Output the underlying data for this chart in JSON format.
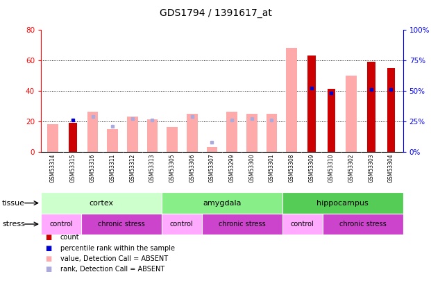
{
  "title": "GDS1794 / 1391617_at",
  "samples": [
    "GSM53314",
    "GSM53315",
    "GSM53316",
    "GSM53311",
    "GSM53312",
    "GSM53313",
    "GSM53305",
    "GSM53306",
    "GSM53307",
    "GSM53299",
    "GSM53300",
    "GSM53301",
    "GSM53308",
    "GSM53309",
    "GSM53310",
    "GSM53302",
    "GSM53303",
    "GSM53304"
  ],
  "count_values": [
    0,
    19,
    0,
    0,
    0,
    0,
    0,
    0,
    0,
    0,
    0,
    0,
    0,
    63,
    41,
    0,
    59,
    55
  ],
  "percentile_rank": [
    0,
    26,
    0,
    0,
    0,
    0,
    0,
    0,
    0,
    0,
    0,
    0,
    0,
    52,
    48,
    0,
    51,
    51
  ],
  "absent_value": [
    18,
    0,
    26,
    15,
    23,
    21,
    16,
    25,
    3,
    26,
    25,
    25,
    68,
    0,
    0,
    50,
    0,
    0
  ],
  "absent_rank": [
    0,
    0,
    29,
    21,
    27,
    26,
    0,
    29,
    8,
    26,
    27,
    26,
    0,
    0,
    0,
    0,
    0,
    0
  ],
  "count_color": "#cc0000",
  "pct_rank_color": "#0000cc",
  "absent_value_color": "#ffaaaa",
  "absent_rank_color": "#aaaadd",
  "ylim_left": [
    0,
    80
  ],
  "ylim_right": [
    0,
    100
  ],
  "yticks_left": [
    0,
    20,
    40,
    60,
    80
  ],
  "yticks_right": [
    0,
    25,
    50,
    75,
    100
  ],
  "tissue_groups": [
    {
      "label": "cortex",
      "start": 0,
      "end": 6,
      "color": "#ccffcc"
    },
    {
      "label": "amygdala",
      "start": 6,
      "end": 12,
      "color": "#88ee88"
    },
    {
      "label": "hippocampus",
      "start": 12,
      "end": 18,
      "color": "#55cc55"
    }
  ],
  "stress_groups": [
    {
      "label": "control",
      "start": 0,
      "end": 2,
      "color": "#ffaaff"
    },
    {
      "label": "chronic stress",
      "start": 2,
      "end": 6,
      "color": "#cc44cc"
    },
    {
      "label": "control",
      "start": 6,
      "end": 8,
      "color": "#ffaaff"
    },
    {
      "label": "chronic stress",
      "start": 8,
      "end": 12,
      "color": "#cc44cc"
    },
    {
      "label": "control",
      "start": 12,
      "end": 14,
      "color": "#ffaaff"
    },
    {
      "label": "chronic stress",
      "start": 14,
      "end": 18,
      "color": "#cc44cc"
    }
  ],
  "xtick_bg": "#cccccc",
  "plot_bg": "#ffffff"
}
